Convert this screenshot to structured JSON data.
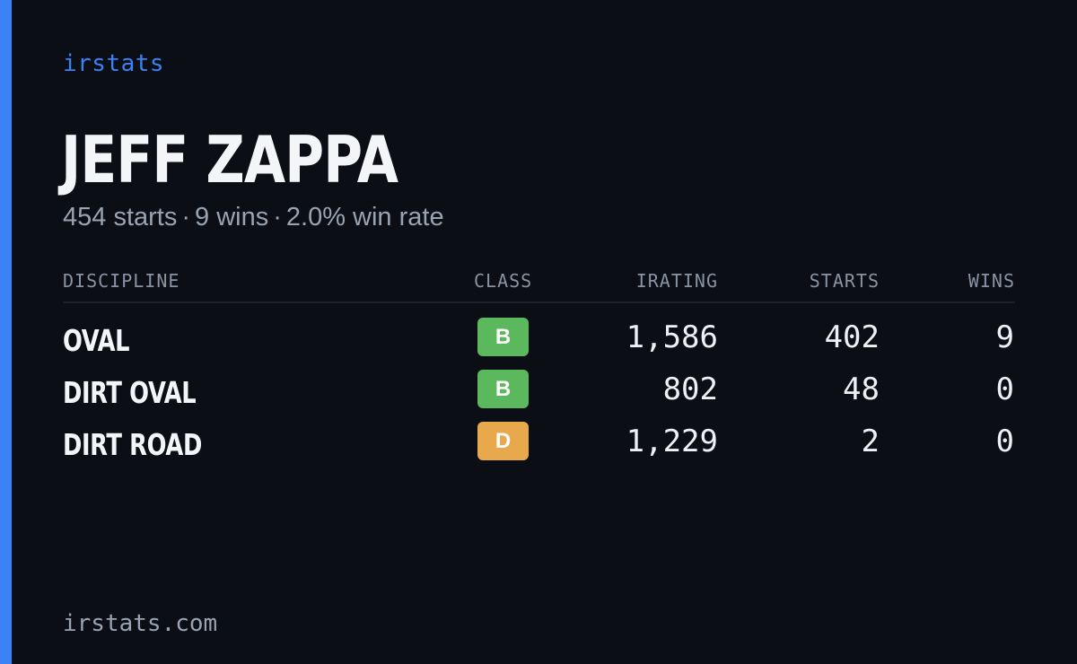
{
  "brand": "irstats",
  "driver": {
    "name": "JEFF ZAPPA"
  },
  "summary": {
    "starts": "454 starts",
    "wins": "9 wins",
    "win_rate": "2.0% win rate",
    "separator": "·"
  },
  "table": {
    "headers": {
      "discipline": "DISCIPLINE",
      "class": "CLASS",
      "irating": "IRATING",
      "starts": "STARTS",
      "wins": "WINS"
    },
    "rows": [
      {
        "discipline": "OVAL",
        "class": "B",
        "class_color": "#5cb85c",
        "irating": "1,586",
        "starts": "402",
        "wins": "9"
      },
      {
        "discipline": "DIRT OVAL",
        "class": "B",
        "class_color": "#5cb85c",
        "irating": "802",
        "starts": "48",
        "wins": "0"
      },
      {
        "discipline": "DIRT ROAD",
        "class": "D",
        "class_color": "#e8a94c",
        "irating": "1,229",
        "starts": "2",
        "wins": "0"
      }
    ]
  },
  "footer": "irstats.com",
  "colors": {
    "background": "#0b0e15",
    "accent": "#3b82f6",
    "class_b": "#5cb85c",
    "class_d": "#e8a94c"
  }
}
